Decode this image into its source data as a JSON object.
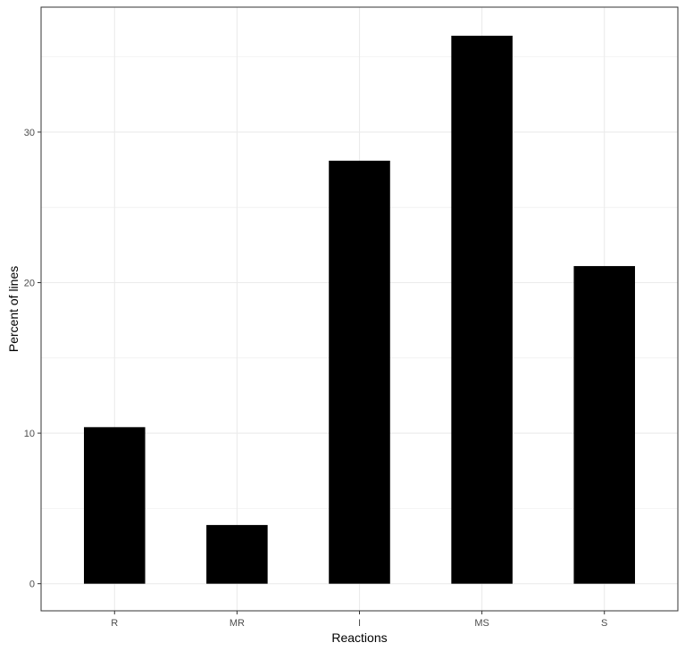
{
  "chart_data": {
    "type": "bar",
    "title": "",
    "xlabel": "Reactions",
    "ylabel": "Percent of lines",
    "categories": [
      "R",
      "MR",
      "I",
      "MS",
      "S"
    ],
    "values": [
      10.4,
      3.9,
      28.1,
      36.4,
      21.1
    ],
    "ylim": [
      -1.8,
      38.3
    ],
    "yticks": [
      0,
      10,
      20,
      30
    ],
    "grid": true,
    "legend": "none",
    "bar_color": "#000000",
    "grid_color": "#ebebeb",
    "panel_border_color": "#333333"
  }
}
